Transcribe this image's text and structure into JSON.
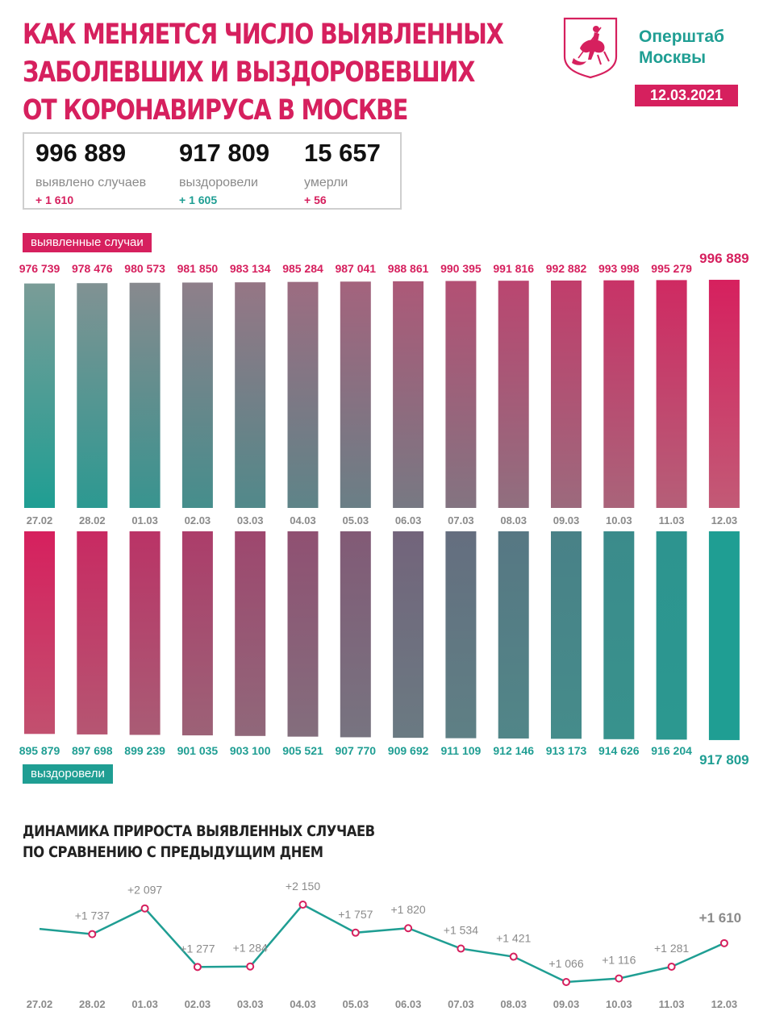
{
  "header": {
    "title_lines": [
      "КАК МЕНЯЕТСЯ ЧИСЛО ВЫЯВЛЕННЫХ",
      "ЗАБОЛЕВШИХ И ВЫЗДОРОВЕВШИХ",
      "ОТ КОРОНАВИРУСА В МОСКВЕ"
    ],
    "org_lines": [
      "Оперштаб",
      "Москвы"
    ],
    "date": "12.03.2021",
    "logo_icon": "moscow-coat-of-arms-icon"
  },
  "colors": {
    "accent": "#d6205e",
    "teal": "#1f9e93",
    "gray": "#8a8a8a"
  },
  "stats": [
    {
      "value": "996 889",
      "label": "выявлено случаев",
      "delta": "+ 1 610",
      "delta_color": "#d6205e"
    },
    {
      "value": "917 809",
      "label": "выздоровели",
      "delta": "+ 1 605",
      "delta_color": "#1f9e93"
    },
    {
      "value": "15 657",
      "label": "умерли",
      "delta": "+ 56",
      "delta_color": "#d6205e"
    }
  ],
  "labels": {
    "cases_tag": "выявленные случаи",
    "recovered_tag": "выздоровели",
    "line_title_lines": [
      "ДИНАМИКА ПРИРОСТА ВЫЯВЛЕННЫХ СЛУЧАЕВ",
      "ПО СРАВНЕНИЮ С ПРЕДЫДУЩИМ ДНЕМ"
    ]
  },
  "chart_data": [
    {
      "type": "bar",
      "categories": [
        "27.02",
        "28.02",
        "01.03",
        "02.03",
        "03.03",
        "04.03",
        "05.03",
        "06.03",
        "07.03",
        "08.03",
        "09.03",
        "10.03",
        "11.03",
        "12.03"
      ],
      "series": [
        {
          "name": "выявленные случаи",
          "values": [
            976739,
            978476,
            980573,
            981850,
            983134,
            985284,
            987041,
            988861,
            990395,
            991816,
            992882,
            993998,
            995279,
            996889
          ],
          "labels": [
            "976 739",
            "978 476",
            "980 573",
            "981 850",
            "983 134",
            "985 284",
            "987 041",
            "988 861",
            "990 395",
            "991 816",
            "992 882",
            "993 998",
            "995 279",
            "996 889"
          ]
        }
      ]
    },
    {
      "type": "bar",
      "categories": [
        "27.02",
        "28.02",
        "01.03",
        "02.03",
        "03.03",
        "04.03",
        "05.03",
        "06.03",
        "07.03",
        "08.03",
        "09.03",
        "10.03",
        "11.03",
        "12.03"
      ],
      "series": [
        {
          "name": "выздоровели",
          "values": [
            895879,
            897698,
            899239,
            901035,
            903100,
            905521,
            907770,
            909692,
            911109,
            912146,
            913173,
            914626,
            916204,
            917809
          ],
          "labels": [
            "895 879",
            "897 698",
            "899 239",
            "901 035",
            "903 100",
            "905 521",
            "907 770",
            "909 692",
            "911 109",
            "912 146",
            "913 173",
            "914 626",
            "916 204",
            "917 809"
          ]
        }
      ]
    },
    {
      "type": "line",
      "title": "ДИНАМИКА ПРИРОСТА ВЫЯВЛЕННЫХ СЛУЧАЕВ ПО СРАВНЕНИЮ С ПРЕДЫДУЩИМ ДНЕМ",
      "categories": [
        "27.02",
        "28.02",
        "01.03",
        "02.03",
        "03.03",
        "04.03",
        "05.03",
        "06.03",
        "07.03",
        "08.03",
        "09.03",
        "10.03",
        "11.03",
        "12.03"
      ],
      "first_point_value": 1810,
      "values": [
        1737,
        2097,
        1277,
        1284,
        2150,
        1757,
        1820,
        1534,
        1421,
        1066,
        1116,
        1281,
        1610
      ],
      "labels": [
        "+1 737",
        "+2 097",
        "+1 277",
        "+1 284",
        "+2 150",
        "+1 757",
        "+1 820",
        "+1 534",
        "+1 421",
        "+1 066",
        "+1 116",
        "+1 281",
        "+1 610"
      ]
    }
  ]
}
